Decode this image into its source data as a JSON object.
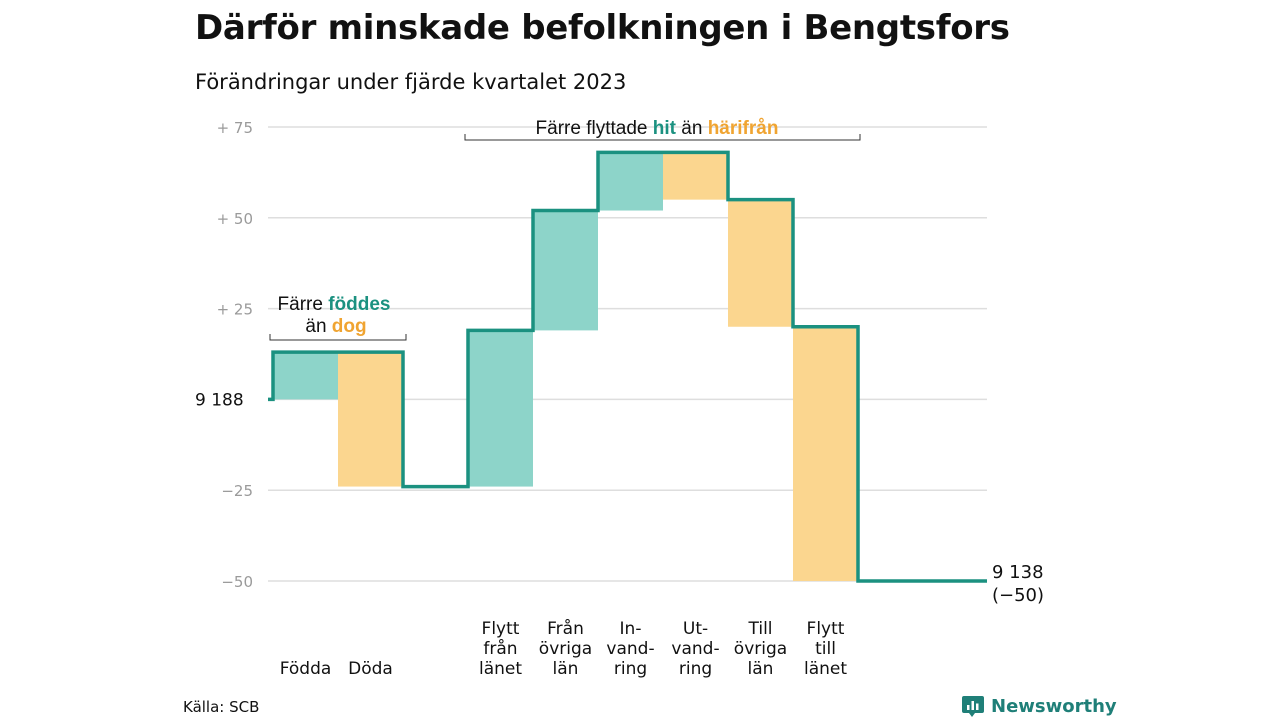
{
  "title": "Därför minskade befolkningen i Bengtsfors",
  "subtitle": "Förändringar under fjärde kvartalet 2023",
  "source": "Källa: SCB",
  "brand": {
    "name": "Newsworthy",
    "icon": "chart-bubble-icon"
  },
  "colors": {
    "increase_fill": "#8dd4c9",
    "decrease_fill": "#fbd68f",
    "step_line": "#1b9180",
    "teal_text": "#1b9180",
    "orange_text": "#f0a431",
    "grid": "#dedede",
    "tick_text": "#9a9a9a"
  },
  "annotations": {
    "births": {
      "line1_a": "Färre ",
      "line1_b": "föddes",
      "line2_a": "än ",
      "line2_b": "dog"
    },
    "moves": {
      "part1": "Färre flyttade ",
      "part2": "hit",
      "part3": " än ",
      "part4": "härifrån"
    }
  },
  "chart_data": {
    "type": "waterfall",
    "title": "Därför minskade befolkningen i Bengtsfors",
    "subtitle": "Förändringar under fjärde kvartalet 2023",
    "start_value": 9188,
    "start_label": "9 188",
    "end_value": 9138,
    "end_label": "9 138",
    "end_change_label": "(−50)",
    "ylim": [
      -50,
      75
    ],
    "yticks": [
      {
        "value": 75,
        "label": "+ 75"
      },
      {
        "value": 50,
        "label": "+ 50"
      },
      {
        "value": 25,
        "label": "+ 25"
      },
      {
        "value": 0,
        "label": "9 188"
      },
      {
        "value": -25,
        "label": "−25"
      },
      {
        "value": -50,
        "label": "−50"
      }
    ],
    "grid": true,
    "steps": [
      {
        "label": [
          "Födda"
        ],
        "kind": "increase",
        "from": 0,
        "to": 13
      },
      {
        "label": [
          "Döda"
        ],
        "kind": "decrease",
        "from": 13,
        "to": -24
      },
      {
        "label": [],
        "kind": "gap",
        "from": -24,
        "to": -24
      },
      {
        "label": [
          "Flytt",
          "från",
          "länet"
        ],
        "kind": "increase",
        "from": -24,
        "to": 19
      },
      {
        "label": [
          "Från",
          "övriga",
          "län"
        ],
        "kind": "increase",
        "from": 19,
        "to": 52
      },
      {
        "label": [
          "In-",
          "vand-",
          "ring"
        ],
        "kind": "increase",
        "from": 52,
        "to": 68
      },
      {
        "label": [
          "Ut-",
          "vand-",
          "ring"
        ],
        "kind": "decrease",
        "from": 68,
        "to": 55
      },
      {
        "label": [
          "Till",
          "övriga",
          "län"
        ],
        "kind": "decrease",
        "from": 55,
        "to": 20
      },
      {
        "label": [
          "Flytt",
          "till",
          "länet"
        ],
        "kind": "decrease",
        "from": 20,
        "to": -50
      }
    ]
  }
}
